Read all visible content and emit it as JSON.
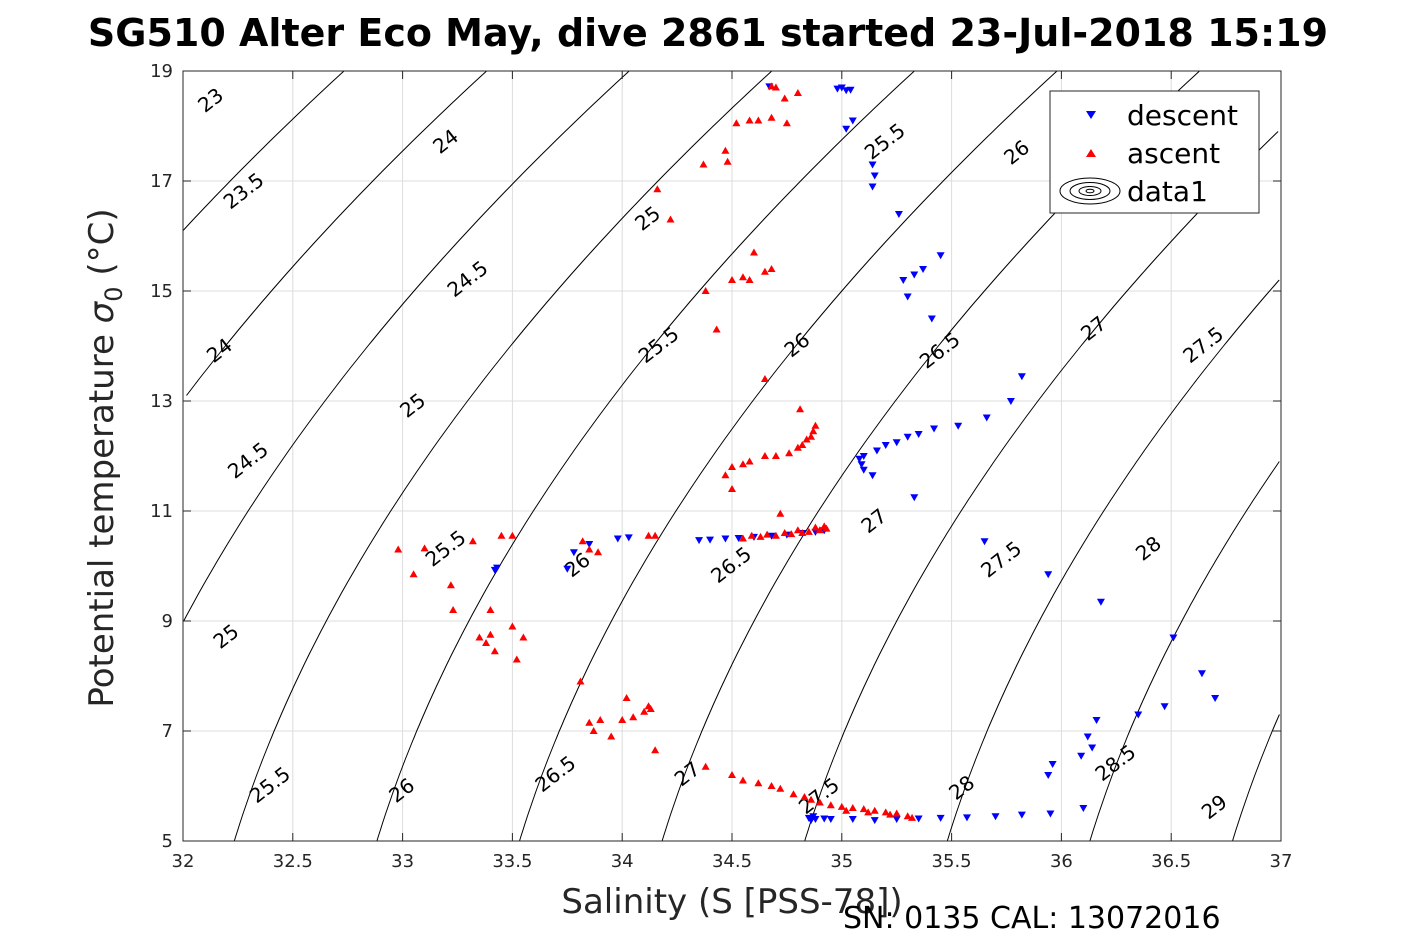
{
  "chart_data": {
    "type": "scatter",
    "title": "SG510 Alter Eco May, dive 2861 started 23-Jul-2018 15:19",
    "xlabel": "Salinity (S [PSS-78])",
    "ylabel": "Potential temperature σ₀ (°C)",
    "ylabel_main": "Potential temperature ",
    "ylabel_sigma": "σ",
    "ylabel_sub": "0",
    "ylabel_unit": " (°C)",
    "footer": "SN: 0135  CAL: 13072016",
    "xlim": [
      32,
      37
    ],
    "ylim": [
      5,
      19
    ],
    "xticks": [
      32,
      32.5,
      33,
      33.5,
      34,
      34.5,
      35,
      35.5,
      36,
      36.5,
      37
    ],
    "xtick_labels": [
      "32",
      "32.5",
      "33",
      "33.5",
      "34",
      "34.5",
      "35",
      "35.5",
      "36",
      "36.5",
      "37"
    ],
    "yticks": [
      5,
      7,
      9,
      11,
      13,
      15,
      17,
      19
    ],
    "ytick_labels": [
      "5",
      "7",
      "9",
      "11",
      "13",
      "15",
      "17",
      "19"
    ],
    "grid": true,
    "legend_position": "top-right",
    "legend": [
      "descent",
      "ascent",
      "data1"
    ],
    "colors": {
      "descent": "#0000ff",
      "ascent": "#ff0000",
      "contour": "#000000",
      "grid": "#dcdcdc"
    },
    "contour_levels": [
      23,
      23.5,
      24,
      24.5,
      25,
      25.5,
      26,
      26.5,
      27,
      27.5,
      28,
      28.5,
      29
    ],
    "contour_labels": [
      {
        "text": "23",
        "x": 32.13,
        "y": 18.45
      },
      {
        "text": "23.5",
        "x": 32.28,
        "y": 16.8
      },
      {
        "text": "24",
        "x": 33.2,
        "y": 17.7
      },
      {
        "text": "24",
        "x": 32.17,
        "y": 13.9
      },
      {
        "text": "24.5",
        "x": 33.3,
        "y": 15.2
      },
      {
        "text": "24.5",
        "x": 32.3,
        "y": 11.9
      },
      {
        "text": "25",
        "x": 34.12,
        "y": 16.3
      },
      {
        "text": "25",
        "x": 33.05,
        "y": 12.9
      },
      {
        "text": "25",
        "x": 32.2,
        "y": 8.7
      },
      {
        "text": "25.5",
        "x": 35.2,
        "y": 17.7
      },
      {
        "text": "25.5",
        "x": 34.17,
        "y": 14.0
      },
      {
        "text": "25.5",
        "x": 33.2,
        "y": 10.3
      },
      {
        "text": "25.5",
        "x": 32.4,
        "y": 6.0
      },
      {
        "text": "26",
        "x": 35.8,
        "y": 17.5
      },
      {
        "text": "26",
        "x": 34.8,
        "y": 14.0
      },
      {
        "text": "26",
        "x": 33.8,
        "y": 10.0
      },
      {
        "text": "26",
        "x": 33.0,
        "y": 5.9
      },
      {
        "text": "26.5",
        "x": 35.45,
        "y": 13.9
      },
      {
        "text": "26.5",
        "x": 34.5,
        "y": 10.0
      },
      {
        "text": "26.5",
        "x": 33.7,
        "y": 6.2
      },
      {
        "text": "27",
        "x": 36.15,
        "y": 14.3
      },
      {
        "text": "27",
        "x": 35.15,
        "y": 10.8
      },
      {
        "text": "27",
        "x": 34.3,
        "y": 6.2
      },
      {
        "text": "27.5",
        "x": 36.65,
        "y": 14.0
      },
      {
        "text": "27.5",
        "x": 35.73,
        "y": 10.1
      },
      {
        "text": "27.5",
        "x": 34.9,
        "y": 5.8
      },
      {
        "text": "28",
        "x": 36.4,
        "y": 10.3
      },
      {
        "text": "28",
        "x": 35.55,
        "y": 5.95
      },
      {
        "text": "28.5",
        "x": 36.25,
        "y": 6.4
      },
      {
        "text": "29",
        "x": 36.7,
        "y": 5.6
      }
    ],
    "series": [
      {
        "name": "descent",
        "marker": "triangle-down",
        "points": [
          [
            34.67,
            18.72
          ],
          [
            34.98,
            18.68
          ],
          [
            35.0,
            18.7
          ],
          [
            35.02,
            18.65
          ],
          [
            35.04,
            18.66
          ],
          [
            35.02,
            17.95
          ],
          [
            35.05,
            18.1
          ],
          [
            35.14,
            17.3
          ],
          [
            35.15,
            17.1
          ],
          [
            35.14,
            16.9
          ],
          [
            35.26,
            16.4
          ],
          [
            35.28,
            15.2
          ],
          [
            35.33,
            15.3
          ],
          [
            35.37,
            15.4
          ],
          [
            35.3,
            14.9
          ],
          [
            35.45,
            15.65
          ],
          [
            35.41,
            14.5
          ],
          [
            35.82,
            13.45
          ],
          [
            35.77,
            13.0
          ],
          [
            35.66,
            12.7
          ],
          [
            35.53,
            12.55
          ],
          [
            35.42,
            12.5
          ],
          [
            35.35,
            12.4
          ],
          [
            35.3,
            12.35
          ],
          [
            35.25,
            12.25
          ],
          [
            35.2,
            12.2
          ],
          [
            35.16,
            12.1
          ],
          [
            35.1,
            12.0
          ],
          [
            35.08,
            11.95
          ],
          [
            35.09,
            11.85
          ],
          [
            35.1,
            11.75
          ],
          [
            35.14,
            11.65
          ],
          [
            35.33,
            11.25
          ],
          [
            34.92,
            10.65
          ],
          [
            34.88,
            10.62
          ],
          [
            34.82,
            10.6
          ],
          [
            34.75,
            10.57
          ],
          [
            34.68,
            10.55
          ],
          [
            34.6,
            10.53
          ],
          [
            34.53,
            10.51
          ],
          [
            34.47,
            10.5
          ],
          [
            34.4,
            10.48
          ],
          [
            34.35,
            10.47
          ],
          [
            33.98,
            10.5
          ],
          [
            34.03,
            10.52
          ],
          [
            33.85,
            10.4
          ],
          [
            33.78,
            10.25
          ],
          [
            33.75,
            9.95
          ],
          [
            33.43,
            9.97
          ],
          [
            33.42,
            9.93
          ],
          [
            35.65,
            10.45
          ],
          [
            35.94,
            9.85
          ],
          [
            36.18,
            9.35
          ],
          [
            36.51,
            8.7
          ],
          [
            36.64,
            8.05
          ],
          [
            36.7,
            7.6
          ],
          [
            36.35,
            7.3
          ],
          [
            36.47,
            7.45
          ],
          [
            36.16,
            7.2
          ],
          [
            36.12,
            6.9
          ],
          [
            36.09,
            6.55
          ],
          [
            36.14,
            6.7
          ],
          [
            35.96,
            6.4
          ],
          [
            35.94,
            6.2
          ],
          [
            36.1,
            5.6
          ],
          [
            35.95,
            5.5
          ],
          [
            35.82,
            5.48
          ],
          [
            35.7,
            5.45
          ],
          [
            35.57,
            5.43
          ],
          [
            35.45,
            5.42
          ],
          [
            35.35,
            5.41
          ],
          [
            35.25,
            5.4
          ],
          [
            35.15,
            5.38
          ],
          [
            35.05,
            5.4
          ],
          [
            34.95,
            5.4
          ],
          [
            34.88,
            5.4
          ],
          [
            34.85,
            5.42
          ],
          [
            34.87,
            5.45
          ],
          [
            34.92,
            5.41
          ],
          [
            34.86,
            5.38
          ]
        ]
      },
      {
        "name": "ascent",
        "marker": "triangle-up",
        "points": [
          [
            34.7,
            18.7
          ],
          [
            34.74,
            18.5
          ],
          [
            34.8,
            18.6
          ],
          [
            34.68,
            18.72
          ],
          [
            34.62,
            18.1
          ],
          [
            34.52,
            18.05
          ],
          [
            34.58,
            18.1
          ],
          [
            34.68,
            18.15
          ],
          [
            34.75,
            18.05
          ],
          [
            34.47,
            17.55
          ],
          [
            34.37,
            17.3
          ],
          [
            34.48,
            17.35
          ],
          [
            34.16,
            16.85
          ],
          [
            34.22,
            16.3
          ],
          [
            34.6,
            15.7
          ],
          [
            34.68,
            15.4
          ],
          [
            34.65,
            15.35
          ],
          [
            34.5,
            15.2
          ],
          [
            34.55,
            15.25
          ],
          [
            34.58,
            15.2
          ],
          [
            34.38,
            15.0
          ],
          [
            34.43,
            14.3
          ],
          [
            34.65,
            13.4
          ],
          [
            34.81,
            12.85
          ],
          [
            34.88,
            12.55
          ],
          [
            34.87,
            12.45
          ],
          [
            34.86,
            12.35
          ],
          [
            34.84,
            12.3
          ],
          [
            34.82,
            12.2
          ],
          [
            34.8,
            12.15
          ],
          [
            34.76,
            12.05
          ],
          [
            34.7,
            12.0
          ],
          [
            34.65,
            12.0
          ],
          [
            34.58,
            11.9
          ],
          [
            34.55,
            11.85
          ],
          [
            34.5,
            11.8
          ],
          [
            34.47,
            11.65
          ],
          [
            34.5,
            11.4
          ],
          [
            34.72,
            10.95
          ],
          [
            34.93,
            10.68
          ],
          [
            34.92,
            10.72
          ],
          [
            34.9,
            10.65
          ],
          [
            34.88,
            10.7
          ],
          [
            34.85,
            10.62
          ],
          [
            34.82,
            10.6
          ],
          [
            34.8,
            10.65
          ],
          [
            34.77,
            10.58
          ],
          [
            34.74,
            10.6
          ],
          [
            34.7,
            10.55
          ],
          [
            34.66,
            10.57
          ],
          [
            34.63,
            10.53
          ],
          [
            34.59,
            10.55
          ],
          [
            34.55,
            10.5
          ],
          [
            34.12,
            10.55
          ],
          [
            34.15,
            10.55
          ],
          [
            33.82,
            10.45
          ],
          [
            33.85,
            10.3
          ],
          [
            33.89,
            10.25
          ],
          [
            33.5,
            10.55
          ],
          [
            33.45,
            10.55
          ],
          [
            33.32,
            10.45
          ],
          [
            33.1,
            10.32
          ],
          [
            32.98,
            10.3
          ],
          [
            33.05,
            9.85
          ],
          [
            33.22,
            9.65
          ],
          [
            33.23,
            9.2
          ],
          [
            33.4,
            9.2
          ],
          [
            33.35,
            8.7
          ],
          [
            33.4,
            8.75
          ],
          [
            33.38,
            8.6
          ],
          [
            33.42,
            8.45
          ],
          [
            33.5,
            8.9
          ],
          [
            33.55,
            8.7
          ],
          [
            33.52,
            8.3
          ],
          [
            33.81,
            7.9
          ],
          [
            34.02,
            7.6
          ],
          [
            34.12,
            7.45
          ],
          [
            34.1,
            7.35
          ],
          [
            34.13,
            7.4
          ],
          [
            34.05,
            7.25
          ],
          [
            34.0,
            7.2
          ],
          [
            33.9,
            7.2
          ],
          [
            33.85,
            7.15
          ],
          [
            33.87,
            7.0
          ],
          [
            33.95,
            6.9
          ],
          [
            34.15,
            6.65
          ],
          [
            34.38,
            6.35
          ],
          [
            34.5,
            6.2
          ],
          [
            34.55,
            6.1
          ],
          [
            34.62,
            6.05
          ],
          [
            34.68,
            6.0
          ],
          [
            34.72,
            5.95
          ],
          [
            34.78,
            5.85
          ],
          [
            34.83,
            5.8
          ],
          [
            34.86,
            5.75
          ],
          [
            34.9,
            5.7
          ],
          [
            34.95,
            5.65
          ],
          [
            35.0,
            5.62
          ],
          [
            35.05,
            5.6
          ],
          [
            35.1,
            5.58
          ],
          [
            35.15,
            5.55
          ],
          [
            35.2,
            5.52
          ],
          [
            35.25,
            5.5
          ],
          [
            35.3,
            5.45
          ],
          [
            35.32,
            5.42
          ],
          [
            35.22,
            5.48
          ],
          [
            35.12,
            5.52
          ],
          [
            35.02,
            5.55
          ]
        ]
      }
    ]
  }
}
